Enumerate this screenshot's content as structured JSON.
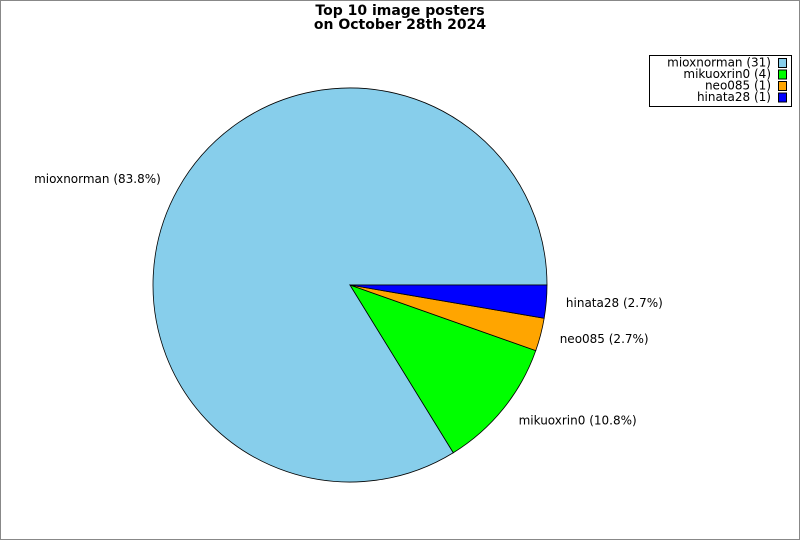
{
  "chart_data": {
    "type": "pie",
    "title": [
      "Top 10 image posters",
      "on October 28th 2024"
    ],
    "values": [
      31,
      4,
      1,
      1
    ],
    "value_labels": [
      "mioxnorman (83.8%)",
      "mikuoxrin0 (10.8%)",
      "neo085 (2.7%)",
      "hinata28 (2.7%)"
    ],
    "legend_labels": [
      "mioxnorman (31)",
      "mikuoxrin0 (4)",
      "neo085 (1)",
      "hinata28 (1)"
    ],
    "colors": [
      "#87ceeb",
      "#00ff00",
      "#ffa500",
      "#0000ff"
    ],
    "legend": "top-right"
  }
}
